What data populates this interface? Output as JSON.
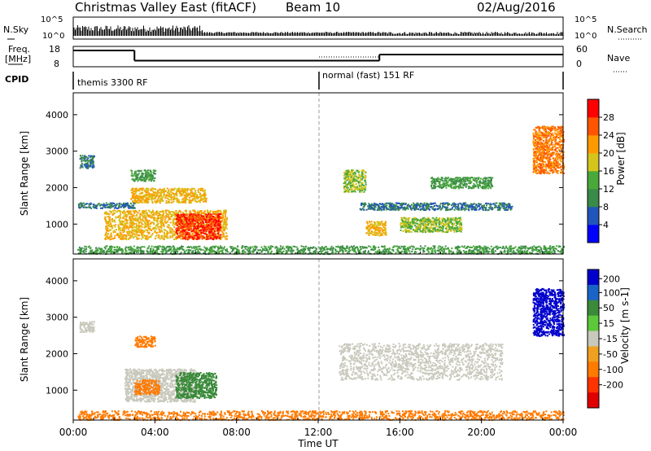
{
  "header": {
    "title": "Christmas Valley East (fitACF)",
    "beam": "Beam 10",
    "date": "02/Aug/2016"
  },
  "noise_panel": {
    "left_label": "N.Sky",
    "right_label": "N.Search",
    "left_ticks": [
      "10^5",
      "10^0"
    ],
    "right_ticks": [
      "10^5",
      "10^0"
    ]
  },
  "freq_panel": {
    "left_label_1": "Freq.",
    "left_label_2": "[MHz]",
    "right_label": "Nave",
    "left_ticks": [
      "18",
      "8"
    ],
    "right_ticks": [
      "60",
      "0"
    ],
    "freq_steps": [
      {
        "t0": 0,
        "t1": 3,
        "v": 16
      },
      {
        "t0": 3,
        "t1": 15,
        "v": 11
      },
      {
        "t0": 15,
        "t1": 24,
        "v": 14
      }
    ]
  },
  "cpid_panel": {
    "label": "CPID",
    "modes": [
      "themis 3300 RF",
      "normal (fast) 151 RF"
    ],
    "mode_change_hour": 12
  },
  "power_panel": {
    "ylabel": "Slant Range [km]",
    "yticks": [
      "1000",
      "2000",
      "3000",
      "4000"
    ],
    "colorbar_label": "Power [dB]",
    "colorbar_ticks": [
      "4",
      "8",
      "12",
      "16",
      "20",
      "24",
      "28"
    ],
    "colors": [
      "#0000ff",
      "#2255bb",
      "#3a8a4a",
      "#4aa83a",
      "#d4c41c",
      "#ff9900",
      "#ff5500",
      "#ff0000"
    ]
  },
  "velocity_panel": {
    "ylabel": "Slant Range [km]",
    "yticks": [
      "1000",
      "2000",
      "3000",
      "4000"
    ],
    "colorbar_label": "Velocity [m s-1]",
    "colorbar_ticks": [
      "200",
      "100",
      "50",
      "15",
      "-15",
      "-50",
      "-100",
      "-200"
    ],
    "colors": [
      "#0000cc",
      "#1a64c8",
      "#3a8a3a",
      "#5cc83a",
      "#c8c8bc",
      "#f0a020",
      "#ff7a00",
      "#ff3300",
      "#e00000"
    ]
  },
  "x_axis": {
    "label": "Time UT",
    "ticks": [
      "00:00",
      "04:00",
      "08:00",
      "12:00",
      "16:00",
      "20:00",
      "00:00"
    ]
  },
  "chart_data": {
    "type": "heatmap",
    "x_range_hours": [
      0,
      24
    ],
    "y_range_km": [
      180,
      4600
    ],
    "power_regions": [
      {
        "t0": 0.2,
        "t1": 24,
        "r0": 200,
        "r1": 420,
        "v": 12
      },
      {
        "t0": 0.3,
        "t1": 1.0,
        "r0": 2550,
        "r1": 2900,
        "v": 8
      },
      {
        "t0": 1.5,
        "t1": 7.5,
        "r0": 600,
        "r1": 1400,
        "v": 20
      },
      {
        "t0": 5.0,
        "t1": 7.2,
        "r0": 600,
        "r1": 1300,
        "v": 28
      },
      {
        "t0": 2.8,
        "t1": 6.5,
        "r0": 1600,
        "r1": 2000,
        "v": 20
      },
      {
        "t0": 0.2,
        "t1": 3.0,
        "r0": 1450,
        "r1": 1600,
        "v": 8
      },
      {
        "t0": 2.8,
        "t1": 4.0,
        "r0": 2200,
        "r1": 2500,
        "v": 12
      },
      {
        "t0": 13.2,
        "t1": 14.3,
        "r0": 1900,
        "r1": 2500,
        "v": 16
      },
      {
        "t0": 14.3,
        "t1": 15.3,
        "r0": 700,
        "r1": 1100,
        "v": 20
      },
      {
        "t0": 16.0,
        "t1": 19.0,
        "r0": 800,
        "r1": 1200,
        "v": 16
      },
      {
        "t0": 14.0,
        "t1": 21.5,
        "r0": 1400,
        "r1": 1600,
        "v": 8
      },
      {
        "t0": 17.5,
        "t1": 20.5,
        "r0": 2000,
        "r1": 2300,
        "v": 12
      },
      {
        "t0": 22.5,
        "t1": 24.0,
        "r0": 2400,
        "r1": 3700,
        "v": 24
      }
    ],
    "velocity_regions": [
      {
        "t0": 0.2,
        "t1": 24,
        "r0": 200,
        "r1": 450,
        "v": -50
      },
      {
        "t0": 2.5,
        "t1": 6.0,
        "r0": 700,
        "r1": 1600,
        "v": 0
      },
      {
        "t0": 5.0,
        "t1": 7.0,
        "r0": 800,
        "r1": 1500,
        "v": 50
      },
      {
        "t0": 3.0,
        "t1": 4.2,
        "r0": 900,
        "r1": 1300,
        "v": -50
      },
      {
        "t0": 0.3,
        "t1": 1.0,
        "r0": 2600,
        "r1": 2900,
        "v": 0
      },
      {
        "t0": 3.0,
        "t1": 4.0,
        "r0": 2200,
        "r1": 2500,
        "v": -50
      },
      {
        "t0": 13.0,
        "t1": 21.0,
        "r0": 1300,
        "r1": 2300,
        "v": 0
      },
      {
        "t0": 22.5,
        "t1": 24.0,
        "r0": 2500,
        "r1": 3800,
        "v": 200
      }
    ]
  }
}
